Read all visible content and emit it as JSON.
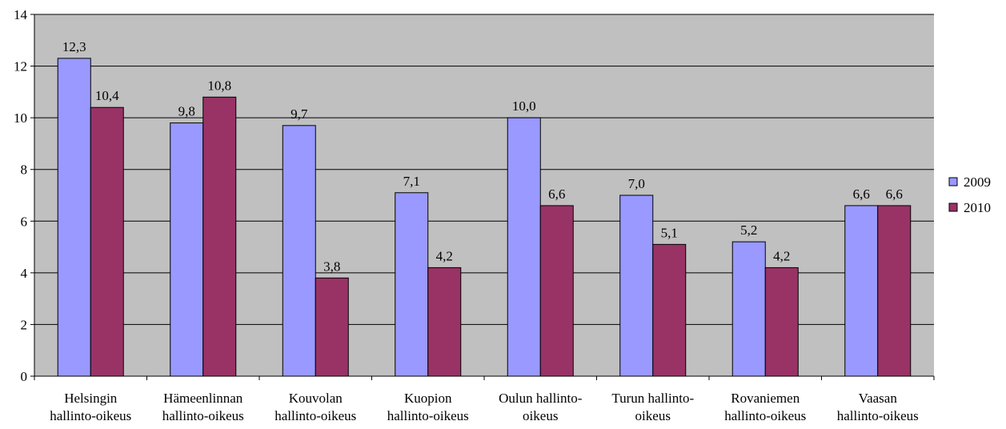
{
  "chart_data": {
    "type": "bar",
    "title": "",
    "xlabel": "",
    "ylabel": "",
    "ylim": [
      0,
      14
    ],
    "yticks": [
      0,
      2,
      4,
      6,
      8,
      10,
      12,
      14
    ],
    "grid": true,
    "legend_position": "right",
    "plot_background": "#c0c0c0",
    "categories": [
      [
        "Helsingin",
        "hallinto-oikeus"
      ],
      [
        "Hämeenlinnan",
        "hallinto-oikeus"
      ],
      [
        "Kouvolan",
        "hallinto-oikeus"
      ],
      [
        "Kuopion",
        "hallinto-oikeus"
      ],
      [
        "Oulun hallinto-",
        "oikeus"
      ],
      [
        "Turun hallinto-",
        "oikeus"
      ],
      [
        "Rovaniemen",
        "hallinto-oikeus"
      ],
      [
        "Vaasan",
        "hallinto-oikeus"
      ]
    ],
    "series": [
      {
        "name": "2009",
        "color": "#9999ff",
        "values": [
          12.3,
          9.8,
          9.7,
          7.1,
          10.0,
          7.0,
          5.2,
          6.6
        ],
        "labels": [
          "12,3",
          "9,8",
          "9,7",
          "7,1",
          "10,0",
          "7,0",
          "5,2",
          "6,6"
        ]
      },
      {
        "name": "2010",
        "color": "#993366",
        "values": [
          10.4,
          10.8,
          3.8,
          4.2,
          6.6,
          5.1,
          4.2,
          6.6
        ],
        "labels": [
          "10,4",
          "10,8",
          "3,8",
          "4,2",
          "6,6",
          "5,1",
          "4,2",
          "6,6"
        ]
      }
    ]
  }
}
